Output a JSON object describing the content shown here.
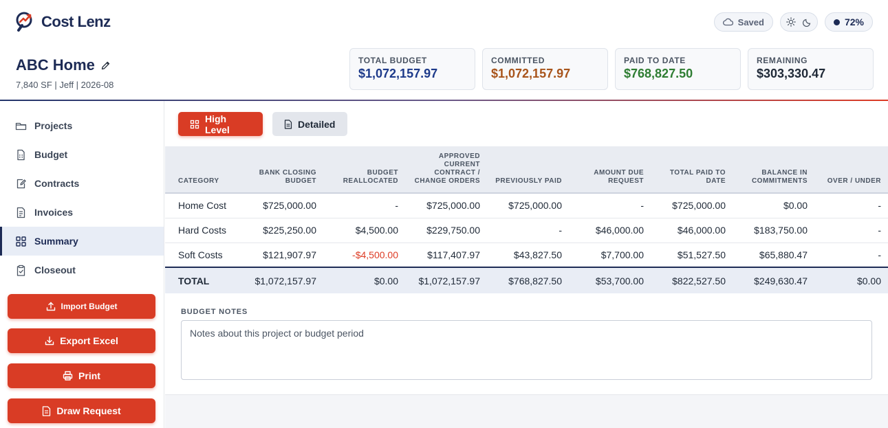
{
  "app": {
    "name": "Cost Lenz"
  },
  "status": {
    "saved_label": "Saved",
    "zoom": "72%"
  },
  "project": {
    "title": "ABC Home",
    "meta": "7,840 SF | Jeff | 2026-08"
  },
  "cards": [
    {
      "label": "TOTAL BUDGET",
      "value": "$1,072,157.97",
      "color": "#1d3a8a"
    },
    {
      "label": "COMMITTED",
      "value": "$1,072,157.97",
      "color": "#a8541b"
    },
    {
      "label": "PAID TO DATE",
      "value": "$768,827.50",
      "color": "#2e7d32"
    },
    {
      "label": "REMAINING",
      "value": "$303,330.47",
      "color": "#1f2937"
    }
  ],
  "sidebar": {
    "items": [
      {
        "label": "Projects",
        "icon": "folder-icon"
      },
      {
        "label": "Budget",
        "icon": "calculator-icon"
      },
      {
        "label": "Contracts",
        "icon": "edit-document-icon"
      },
      {
        "label": "Invoices",
        "icon": "document-icon"
      },
      {
        "label": "Summary",
        "icon": "grid-icon",
        "active": true
      },
      {
        "label": "Closeout",
        "icon": "clipboard-check-icon"
      }
    ],
    "actions": {
      "import": "Import Budget",
      "export": "Export Excel",
      "print": "Print",
      "draw": "Draw Request"
    }
  },
  "tabs": {
    "high_level": "High Level",
    "detailed": "Detailed"
  },
  "table": {
    "headers": {
      "category": "CATEGORY",
      "bank_closing": [
        "BANK CLOSING",
        "BUDGET"
      ],
      "reallocated": [
        "BUDGET",
        "REALLOCATED"
      ],
      "approved": [
        "APPROVED",
        "CURRENT",
        "CONTRACT /",
        "CHANGE ORDERS"
      ],
      "prev_paid": [
        "PREVIOUSLY PAID"
      ],
      "amount_due": [
        "AMOUNT DUE",
        "REQUEST"
      ],
      "total_paid": [
        "TOTAL PAID TO",
        "DATE"
      ],
      "balance": [
        "BALANCE IN",
        "COMMITMENTS"
      ],
      "over_under": [
        "OVER / UNDER"
      ]
    },
    "rows": [
      {
        "category": "Home Cost",
        "bank_closing": "$725,000.00",
        "reallocated": "-",
        "approved": "$725,000.00",
        "prev_paid": "$725,000.00",
        "amount_due": "-",
        "total_paid": "$725,000.00",
        "balance": "$0.00",
        "over_under": "-"
      },
      {
        "category": "Hard Costs",
        "bank_closing": "$225,250.00",
        "reallocated": "$4,500.00",
        "approved": "$229,750.00",
        "prev_paid": "-",
        "amount_due": "$46,000.00",
        "total_paid": "$46,000.00",
        "balance": "$183,750.00",
        "over_under": "-"
      },
      {
        "category": "Soft Costs",
        "bank_closing": "$121,907.97",
        "reallocated": "-$4,500.00",
        "approved": "$117,407.97",
        "prev_paid": "$43,827.50",
        "amount_due": "$7,700.00",
        "total_paid": "$51,527.50",
        "balance": "$65,880.47",
        "over_under": "-"
      }
    ],
    "total": {
      "category": "TOTAL",
      "bank_closing": "$1,072,157.97",
      "reallocated": "$0.00",
      "approved": "$1,072,157.97",
      "prev_paid": "$768,827.50",
      "amount_due": "$53,700.00",
      "total_paid": "$822,527.50",
      "balance": "$249,630.47",
      "over_under": "$0.00"
    }
  },
  "notes": {
    "label": "BUDGET NOTES",
    "placeholder": "Notes about this project or budget period"
  },
  "colors": {
    "brand_navy": "#1d2b55",
    "accent_red": "#d93c25",
    "negative": "#dd3b24"
  }
}
